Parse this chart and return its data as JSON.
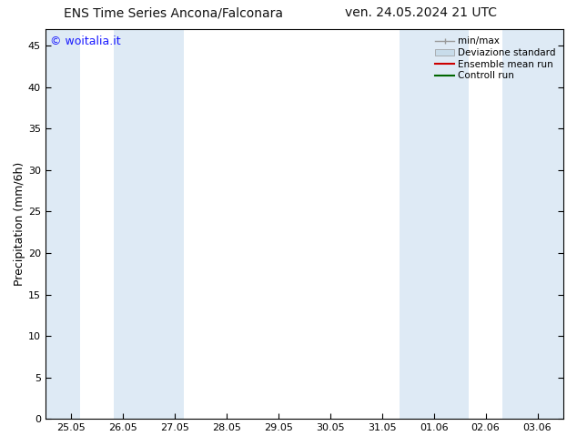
{
  "title_left": "ENS Time Series Ancona/Falconara",
  "title_right": "ven. 24.05.2024 21 UTC",
  "ylabel": "Precipitation (mm/6h)",
  "watermark": "© woitalia.it",
  "watermark_color": "#1a1aff",
  "background_color": "#ffffff",
  "plot_bg_color": "#ffffff",
  "ylim": [
    0,
    47
  ],
  "yticks": [
    0,
    5,
    10,
    15,
    20,
    25,
    30,
    35,
    40,
    45
  ],
  "xtick_labels": [
    "25.05",
    "26.05",
    "27.05",
    "28.05",
    "29.05",
    "30.05",
    "31.05",
    "01.06",
    "02.06",
    "03.06"
  ],
  "xtick_positions": [
    0,
    1,
    2,
    3,
    4,
    5,
    6,
    7,
    8,
    9
  ],
  "xmin": -0.5,
  "xmax": 9.5,
  "shaded_bands": [
    {
      "x_start": -0.5,
      "x_end": 0.17,
      "color": "#deeaf5"
    },
    {
      "x_start": 0.83,
      "x_end": 2.17,
      "color": "#deeaf5"
    },
    {
      "x_start": 6.33,
      "x_end": 7.67,
      "color": "#deeaf5"
    },
    {
      "x_start": 8.33,
      "x_end": 9.5,
      "color": "#deeaf5"
    }
  ],
  "legend_entries": [
    {
      "label": "min/max",
      "color": "#999999",
      "type": "errorbar"
    },
    {
      "label": "Deviazione standard",
      "color": "#c8dcea",
      "type": "bar"
    },
    {
      "label": "Ensemble mean run",
      "color": "#cc0000",
      "type": "line"
    },
    {
      "label": "Controll run",
      "color": "#006600",
      "type": "line"
    }
  ],
  "title_fontsize": 10,
  "tick_fontsize": 8,
  "ylabel_fontsize": 9,
  "legend_fontsize": 7.5,
  "watermark_fontsize": 9
}
